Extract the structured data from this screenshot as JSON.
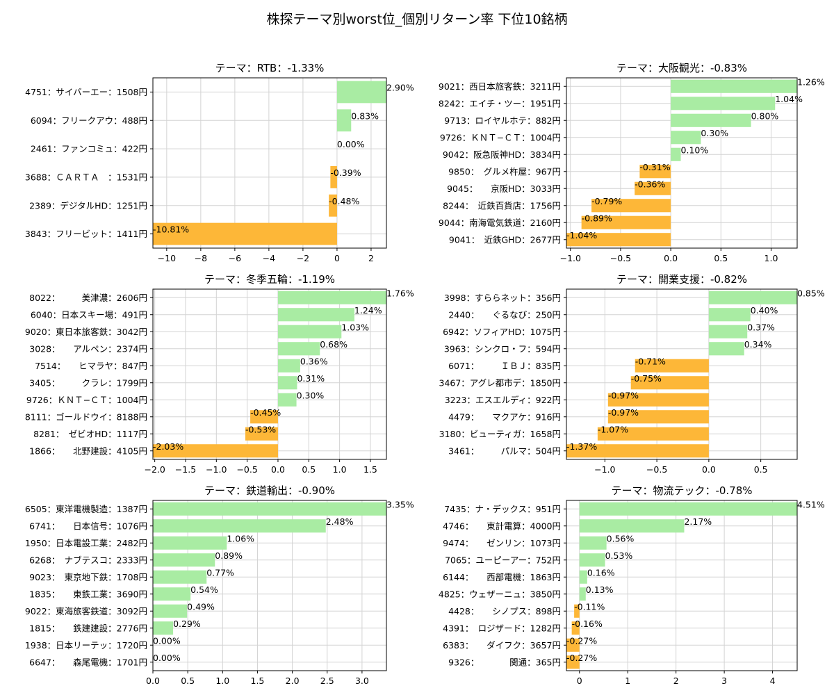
{
  "figure_title": "株探テーマ別worst位_個別リターン率 下位10銘柄",
  "colors": {
    "positive": "#a9eca3",
    "negative": "#fdb738",
    "grid": "#d3d3d3"
  },
  "chart_data": [
    {
      "type": "bar",
      "orientation": "horizontal",
      "grid": true,
      "title": "テーマ：RTB：-1.33%",
      "categories": [
        "4751：サイバーエー：1508円",
        "6094：フリークアウ：488円",
        "2461：ファンコミュ：422円",
        "3688：ＣＡＲＴＡ　：1531円",
        "2389：デジタルHD：1251円",
        "3843：フリービット：1411円"
      ],
      "values": [
        2.9,
        0.83,
        0.0,
        -0.39,
        -0.48,
        -10.81
      ],
      "value_labels": [
        "2.90%",
        "0.83%",
        "0.00%",
        "-0.39%",
        "-0.48%",
        "-10.81%"
      ],
      "xlim": [
        -10.81,
        2.9
      ],
      "xticks": [
        -10,
        -8,
        -6,
        -4,
        -2,
        0,
        2
      ],
      "xtick_labels": [
        "−10",
        "−8",
        "−6",
        "−4",
        "−2",
        "0",
        "2"
      ]
    },
    {
      "type": "bar",
      "orientation": "horizontal",
      "grid": true,
      "title": "テーマ：大阪観光：-0.83%",
      "categories": [
        "9021：西日本旅客鉄：3211円",
        "8242：エイチ・ツー：1951円",
        "9713：ロイヤルホテ：882円",
        "9726：ＫＮＴ−ＣＴ：1004円",
        "9042：阪急阪神HD：3834円",
        "9850：　グルメ杵屋：967円",
        "9045：　　京阪HD：3033円",
        "8244：　近鉄百貨店：1756円",
        "9044：南海電気鉄道：2160円",
        "9041：　近鉄GHD：2677円"
      ],
      "values": [
        1.26,
        1.04,
        0.8,
        0.3,
        0.1,
        -0.31,
        -0.36,
        -0.79,
        -0.89,
        -1.04
      ],
      "value_labels": [
        "1.26%",
        "1.04%",
        "0.80%",
        "0.30%",
        "0.10%",
        "-0.31%",
        "-0.36%",
        "-0.79%",
        "-0.89%",
        "-1.04%"
      ],
      "xlim": [
        -1.04,
        1.26
      ],
      "xticks": [
        -1.0,
        -0.5,
        0.0,
        0.5,
        1.0
      ],
      "xtick_labels": [
        "−1.0",
        "−0.5",
        "0.0",
        "0.5",
        "1.0"
      ]
    },
    {
      "type": "bar",
      "orientation": "horizontal",
      "grid": true,
      "title": "テーマ：冬季五輪：-1.19%",
      "categories": [
        "8022：　　　美津濃：2606円",
        "6040：日本スキー場：491円",
        "9020：東日本旅客鉄：3042円",
        "3028：　　アルペン：2374円",
        "7514：　　ヒマラヤ：847円",
        "3405：　　　クラレ：1799円",
        "9726：ＫＮＴ−ＣＴ：1004円",
        "8111：ゴールドウイ：8188円",
        "8281：　ゼビオHD：1117円",
        "1866：　　北野建設：4105円"
      ],
      "values": [
        1.76,
        1.24,
        1.03,
        0.68,
        0.36,
        0.31,
        0.3,
        -0.45,
        -0.53,
        -2.03
      ],
      "value_labels": [
        "1.76%",
        "1.24%",
        "1.03%",
        "0.68%",
        "0.36%",
        "0.31%",
        "0.30%",
        "-0.45%",
        "-0.53%",
        "-2.03%"
      ],
      "xlim": [
        -2.03,
        1.76
      ],
      "xticks": [
        -2.0,
        -1.5,
        -1.0,
        -0.5,
        0.0,
        0.5,
        1.0,
        1.5
      ],
      "xtick_labels": [
        "−2.0",
        "−1.5",
        "−1.0",
        "−0.5",
        "0.0",
        "0.5",
        "1.0",
        "1.5"
      ]
    },
    {
      "type": "bar",
      "orientation": "horizontal",
      "grid": true,
      "title": "テーマ：開業支援：-0.82%",
      "categories": [
        "3998：すららネット：356円",
        "2440：　　ぐるなび：250円",
        "6942：ソフィアHD：1075円",
        "3963：シンクロ・フ：594円",
        "6071：　　　ＩＢＪ：835円",
        "3467：アグレ都市デ：1850円",
        "3223：エスエルディ：922円",
        "4479：　　マクアケ：916円",
        "3180：ビューティガ：1658円",
        "3461：　　　パルマ：504円"
      ],
      "values": [
        0.85,
        0.4,
        0.37,
        0.34,
        -0.71,
        -0.75,
        -0.97,
        -0.97,
        -1.07,
        -1.37
      ],
      "value_labels": [
        "0.85%",
        "0.40%",
        "0.37%",
        "0.34%",
        "-0.71%",
        "-0.75%",
        "-0.97%",
        "-0.97%",
        "-1.07%",
        "-1.37%"
      ],
      "xlim": [
        -1.37,
        0.85
      ],
      "xticks": [
        -1.0,
        -0.5,
        0.0,
        0.5
      ],
      "xtick_labels": [
        "−1.0",
        "−0.5",
        "0.0",
        "0.5"
      ]
    },
    {
      "type": "bar",
      "orientation": "horizontal",
      "grid": true,
      "title": "テーマ：鉄道輸出：-0.90%",
      "categories": [
        "6505：東洋電機製造：1387円",
        "6741：　　日本信号：1076円",
        "1950：日本電設工業：2482円",
        "6268：　ナブテスコ：2333円",
        "9023：　東京地下鉄：1708円",
        "1835：　　東鉄工業：3690円",
        "9022：東海旅客鉄道：3092円",
        "1815：　　鉄建建設：2776円",
        "1938：日本リーテッ：1720円",
        "6647：　　森尾電機：1701円"
      ],
      "values": [
        3.35,
        2.48,
        1.06,
        0.89,
        0.77,
        0.54,
        0.49,
        0.29,
        0.0,
        0.0
      ],
      "value_labels": [
        "3.35%",
        "2.48%",
        "1.06%",
        "0.89%",
        "0.77%",
        "0.54%",
        "0.49%",
        "0.29%",
        "0.00%",
        "0.00%"
      ],
      "xlim": [
        0.0,
        3.35
      ],
      "xticks": [
        0.0,
        0.5,
        1.0,
        1.5,
        2.0,
        2.5,
        3.0
      ],
      "xtick_labels": [
        "0.0",
        "0.5",
        "1.0",
        "1.5",
        "2.0",
        "2.5",
        "3.0"
      ]
    },
    {
      "type": "bar",
      "orientation": "horizontal",
      "grid": true,
      "title": "テーマ：物流テック：-0.78%",
      "categories": [
        "7435：ナ・デックス：951円",
        "4746：　　東計電算：4000円",
        "9474：　　ゼンリン：1073円",
        "7065：ユーピーアー：752円",
        "6144：　　西部電機：1863円",
        "4825：ウェザーニュ：3850円",
        "4428：　　シノプス：898円",
        "4391：　ロジザード：1282円",
        "6383：　　ダイフク：3657円",
        "9326：　　　　関通：365円"
      ],
      "values": [
        4.51,
        2.17,
        0.56,
        0.53,
        0.16,
        0.13,
        -0.11,
        -0.16,
        -0.27,
        -0.27
      ],
      "value_labels": [
        "4.51%",
        "2.17%",
        "0.56%",
        "0.53%",
        "0.16%",
        "0.13%",
        "-0.11%",
        "-0.16%",
        "-0.27%",
        "-0.27%"
      ],
      "xlim": [
        -0.27,
        4.51
      ],
      "xticks": [
        0,
        1,
        2,
        3,
        4
      ],
      "xtick_labels": [
        "0",
        "1",
        "2",
        "3",
        "4"
      ]
    }
  ]
}
